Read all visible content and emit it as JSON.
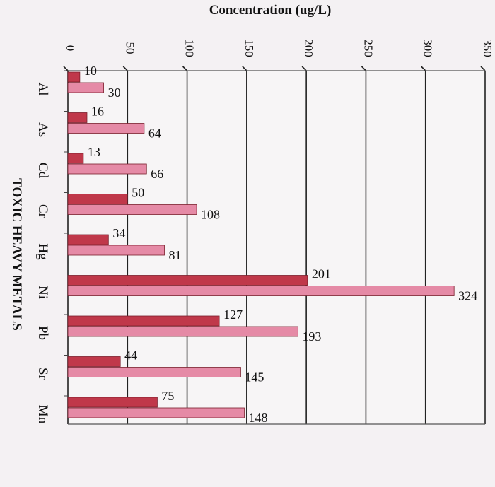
{
  "chart_data": {
    "type": "bar",
    "orientation": "horizontal",
    "title": "Concentration (ug/L)",
    "xlabel": "TOXIC HEAVY METALS",
    "ylabel": "",
    "ylim": [
      0,
      350
    ],
    "ticks": [
      0,
      50,
      100,
      150,
      200,
      250,
      300,
      350
    ],
    "categories": [
      "Al",
      "As",
      "Cd",
      "Cr",
      "Hg",
      "Ni",
      "Pb",
      "Sr",
      "Mn"
    ],
    "series": [
      {
        "values": [
          10,
          16,
          13,
          50,
          34,
          201,
          127,
          44,
          75
        ],
        "color": "#c0384a"
      },
      {
        "values": [
          30,
          64,
          66,
          108,
          81,
          324,
          193,
          145,
          148
        ],
        "color": "#e58aa6"
      }
    ],
    "grid": true
  }
}
